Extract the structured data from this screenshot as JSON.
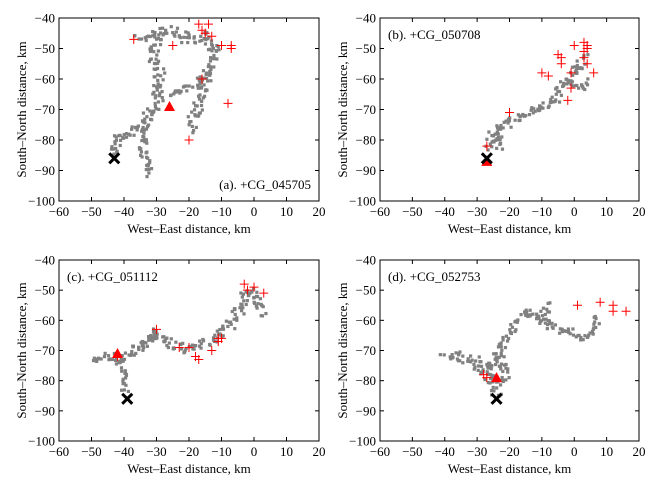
{
  "figure": {
    "background": "#ffffff"
  },
  "styles": {
    "source_color": "#808080",
    "flash_color": "#ff0000",
    "triangle_color": "#ff0000",
    "x_marker_color": "#000000"
  },
  "chart_data": [
    {
      "type": "scatter",
      "id": "a",
      "title": "(a). +CG_045705",
      "title_position": "bottom-right",
      "xlabel": "West–East distance, km",
      "ylabel": "South–North distance, km",
      "xlim": [
        -60,
        20
      ],
      "ylim": [
        -100,
        -40
      ],
      "xticks": [
        -60,
        -50,
        -40,
        -30,
        -20,
        -10,
        0,
        10,
        20
      ],
      "yticks": [
        -100,
        -90,
        -80,
        -70,
        -60,
        -50,
        -40
      ],
      "xtick_labels": [
        "−60",
        "−50",
        "−40",
        "−30",
        "−20",
        "−10",
        "0",
        "10",
        "20"
      ],
      "ytick_labels": [
        "−100",
        "−90",
        "−80",
        "−70",
        "−60",
        "−50",
        "−40"
      ],
      "source_path": [
        [
          -43,
          -84
        ],
        [
          -42,
          -80
        ],
        [
          -38,
          -77
        ],
        [
          -34,
          -75
        ],
        [
          -32,
          -72
        ],
        [
          -30,
          -66
        ],
        [
          -29,
          -58
        ],
        [
          -31,
          -52
        ],
        [
          -30,
          -46
        ],
        [
          -25,
          -44
        ],
        [
          -20,
          -47
        ],
        [
          -15,
          -46
        ],
        [
          -12,
          -50
        ],
        [
          -14,
          -58
        ],
        [
          -16,
          -65
        ],
        [
          -18,
          -72
        ],
        [
          -20,
          -77
        ]
      ],
      "source_branches": [
        [
          [
            -34,
            -75
          ],
          [
            -34,
            -82
          ],
          [
            -33,
            -88
          ],
          [
            -32,
            -92
          ]
        ],
        [
          [
            -27,
            -66
          ],
          [
            -23,
            -64
          ],
          [
            -18,
            -62
          ],
          [
            -14,
            -58
          ]
        ],
        [
          [
            -30,
            -46
          ],
          [
            -34,
            -47
          ],
          [
            -37,
            -47
          ]
        ]
      ],
      "flashes": [
        [
          -37,
          -47
        ],
        [
          -25,
          -49
        ],
        [
          -17,
          -42
        ],
        [
          -16,
          -44
        ],
        [
          -15,
          -45
        ],
        [
          -14,
          -42
        ],
        [
          -13,
          -46
        ],
        [
          -10,
          -49
        ],
        [
          -7,
          -49
        ],
        [
          -7,
          -50
        ],
        [
          -16,
          -60
        ],
        [
          -8,
          -68
        ],
        [
          -20,
          -80
        ]
      ],
      "triangle": [
        -26,
        -69
      ],
      "x_marker": [
        -43,
        -86
      ]
    },
    {
      "type": "scatter",
      "id": "b",
      "title": "(b). +CG_050708",
      "title_position": "top-left",
      "xlabel": "West–East distance, km",
      "ylabel": "South–North distance, km",
      "xlim": [
        -60,
        20
      ],
      "ylim": [
        -100,
        -40
      ],
      "xticks": [
        -60,
        -50,
        -40,
        -30,
        -20,
        -10,
        0,
        10,
        20
      ],
      "yticks": [
        -100,
        -90,
        -80,
        -70,
        -60,
        -50,
        -40
      ],
      "xtick_labels": [
        "−60",
        "−50",
        "−40",
        "−30",
        "−20",
        "−10",
        "0",
        "10",
        "20"
      ],
      "ytick_labels": [
        "−100",
        "−90",
        "−80",
        "−70",
        "−60",
        "−50",
        "−40"
      ],
      "source_path": [
        [
          -26,
          -82
        ],
        [
          -25,
          -78
        ],
        [
          -23,
          -76
        ],
        [
          -20,
          -74
        ],
        [
          -16,
          -72
        ],
        [
          -12,
          -70
        ],
        [
          -9,
          -68
        ],
        [
          -6,
          -66
        ],
        [
          -4,
          -64
        ],
        [
          -2,
          -61
        ],
        [
          0,
          -58
        ],
        [
          2,
          -55
        ],
        [
          3,
          -52
        ]
      ],
      "source_branches": [
        [
          [
            -24,
            -77
          ],
          [
            -23,
            -83
          ]
        ],
        [
          [
            -2,
            -61
          ],
          [
            2,
            -63
          ],
          [
            4,
            -60
          ]
        ]
      ],
      "flashes": [
        [
          -27,
          -82
        ],
        [
          -20,
          -71
        ],
        [
          -10,
          -58
        ],
        [
          -8,
          -59
        ],
        [
          -5,
          -52
        ],
        [
          -4,
          -53
        ],
        [
          -4,
          -55
        ],
        [
          -1,
          -58
        ],
        [
          0,
          -49
        ],
        [
          3,
          -48
        ],
        [
          4,
          -49
        ],
        [
          4,
          -50
        ],
        [
          3,
          -51
        ],
        [
          3,
          -53
        ],
        [
          4,
          -55
        ],
        [
          6,
          -58
        ],
        [
          -1,
          -63
        ],
        [
          -2,
          -67
        ]
      ],
      "triangle": [
        -27,
        -87
      ],
      "x_marker": [
        -27,
        -86
      ]
    },
    {
      "type": "scatter",
      "id": "c",
      "title": "(c). +CG_051112",
      "title_position": "top-left",
      "xlabel": "West–East distance, km",
      "ylabel": "South–North distance, km",
      "xlim": [
        -60,
        20
      ],
      "ylim": [
        -100,
        -40
      ],
      "xticks": [
        -60,
        -50,
        -40,
        -30,
        -20,
        -10,
        0,
        10,
        20
      ],
      "yticks": [
        -100,
        -90,
        -80,
        -70,
        -60,
        -50,
        -40
      ],
      "xtick_labels": [
        "−60",
        "−50",
        "−40",
        "−30",
        "−20",
        "−10",
        "0",
        "10",
        "20"
      ],
      "ytick_labels": [
        "−100",
        "−90",
        "−80",
        "−70",
        "−60",
        "−50",
        "−40"
      ],
      "source_path": [
        [
          -49,
          -73
        ],
        [
          -45,
          -72
        ],
        [
          -40,
          -72
        ],
        [
          -35,
          -69
        ],
        [
          -30,
          -64
        ],
        [
          -27,
          -67
        ],
        [
          -24,
          -69
        ],
        [
          -20,
          -70
        ],
        [
          -16,
          -68
        ],
        [
          -12,
          -66
        ],
        [
          -9,
          -63
        ],
        [
          -6,
          -60
        ],
        [
          -4,
          -55
        ],
        [
          -2,
          -50
        ],
        [
          2,
          -55
        ],
        [
          3,
          -58
        ]
      ],
      "source_branches": [
        [
          [
            -42,
            -72
          ],
          [
            -41,
            -76
          ],
          [
            -40,
            -80
          ],
          [
            -39,
            -84
          ]
        ],
        [
          [
            -30,
            -64
          ],
          [
            -33,
            -67
          ],
          [
            -36,
            -70
          ]
        ]
      ],
      "flashes": [
        [
          -42,
          -72
        ],
        [
          -30,
          -63
        ],
        [
          -23,
          -69
        ],
        [
          -20,
          -69
        ],
        [
          -18,
          -72
        ],
        [
          -17,
          -73
        ],
        [
          -13,
          -70
        ],
        [
          -11,
          -67
        ],
        [
          -11,
          -66
        ],
        [
          -10,
          -66
        ],
        [
          -3,
          -48
        ],
        [
          -2,
          -50
        ],
        [
          0,
          -49
        ],
        [
          3,
          -51
        ]
      ],
      "triangle": [
        -42,
        -71
      ],
      "x_marker": [
        -39,
        -86
      ]
    },
    {
      "type": "scatter",
      "id": "d",
      "title": "(d). +CG_052753",
      "title_position": "top-left",
      "xlabel": "West–East distance, km",
      "ylabel": "South–North distance, km",
      "xlim": [
        -60,
        20
      ],
      "ylim": [
        -100,
        -40
      ],
      "xticks": [
        -60,
        -50,
        -40,
        -30,
        -20,
        -10,
        0,
        10,
        20
      ],
      "yticks": [
        -100,
        -90,
        -80,
        -70,
        -60,
        -50,
        -40
      ],
      "xtick_labels": [
        "−60",
        "−50",
        "−40",
        "−30",
        "−20",
        "−10",
        "0",
        "10",
        "20"
      ],
      "ytick_labels": [
        "−100",
        "−90",
        "−80",
        "−70",
        "−60",
        "−50",
        "−40"
      ],
      "source_path": [
        [
          -40,
          -72
        ],
        [
          -35,
          -72
        ],
        [
          -30,
          -74
        ],
        [
          -27,
          -75
        ],
        [
          -24,
          -82
        ],
        [
          -24,
          -86
        ]
      ],
      "source_branches": [
        [
          [
            -26,
            -76
          ],
          [
            -23,
            -70
          ],
          [
            -19,
            -63
          ],
          [
            -17,
            -59
          ],
          [
            -14,
            -57
          ],
          [
            -10,
            -60
          ],
          [
            -5,
            -63
          ],
          [
            -1,
            -64
          ],
          [
            3,
            -66
          ],
          [
            6,
            -63
          ],
          [
            8,
            -58
          ]
        ],
        [
          [
            -23,
            -72
          ],
          [
            -21,
            -78
          ],
          [
            -22,
            -82
          ]
        ],
        [
          [
            -30,
            -77
          ],
          [
            -27,
            -79
          ],
          [
            -25,
            -80
          ]
        ],
        [
          [
            -10,
            -60
          ],
          [
            -8,
            -56
          ],
          [
            -6,
            -55
          ]
        ]
      ],
      "flashes": [
        [
          -28,
          -78
        ],
        [
          -27,
          -79
        ],
        [
          1,
          -55
        ],
        [
          8,
          -54
        ],
        [
          12,
          -55
        ],
        [
          12,
          -57
        ],
        [
          16,
          -57
        ]
      ],
      "triangle": [
        -24,
        -79
      ],
      "x_marker": [
        -24,
        -86
      ]
    }
  ]
}
